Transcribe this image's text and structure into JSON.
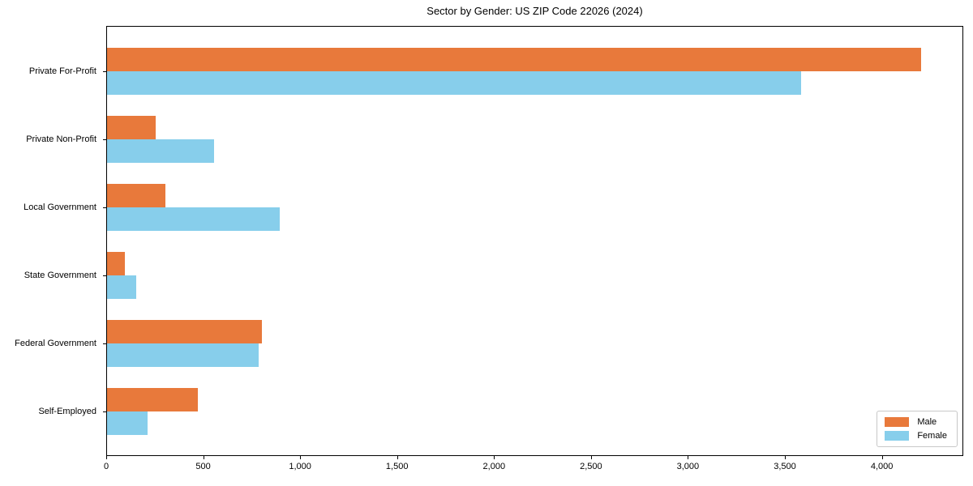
{
  "title": "Sector by Gender: US ZIP Code 22026 (2024)",
  "colors": {
    "male": "#E8793B",
    "female": "#87CEEB",
    "axis": "#000000",
    "legend_border": "#C8C8C8",
    "background": "#FFFFFF"
  },
  "legend": {
    "position": "lower right",
    "items": [
      {
        "label": "Male",
        "color": "#E8793B"
      },
      {
        "label": "Female",
        "color": "#87CEEB"
      }
    ]
  },
  "chart_data": {
    "type": "bar",
    "orientation": "horizontal",
    "title": "Sector by Gender: US ZIP Code 22026 (2024)",
    "categories": [
      "Private For-Profit",
      "Private Non-Profit",
      "Local Government",
      "State Government",
      "Federal Government",
      "Self-Employed"
    ],
    "series": [
      {
        "name": "Male",
        "color": "#E8793B",
        "values": [
          4200,
          250,
          300,
          90,
          800,
          470
        ]
      },
      {
        "name": "Female",
        "color": "#87CEEB",
        "values": [
          3580,
          550,
          890,
          150,
          780,
          210
        ]
      }
    ],
    "xlabel": "",
    "ylabel": "",
    "xlim": [
      0,
      4420
    ],
    "xticks": [
      0,
      500,
      1000,
      1500,
      2000,
      2500,
      3000,
      3500,
      4000
    ],
    "xtick_labels": [
      "0",
      "500",
      "1,000",
      "1,500",
      "2,000",
      "2,500",
      "3,000",
      "3,500",
      "4,000"
    ],
    "grid": false,
    "legend_position": "lower right"
  }
}
